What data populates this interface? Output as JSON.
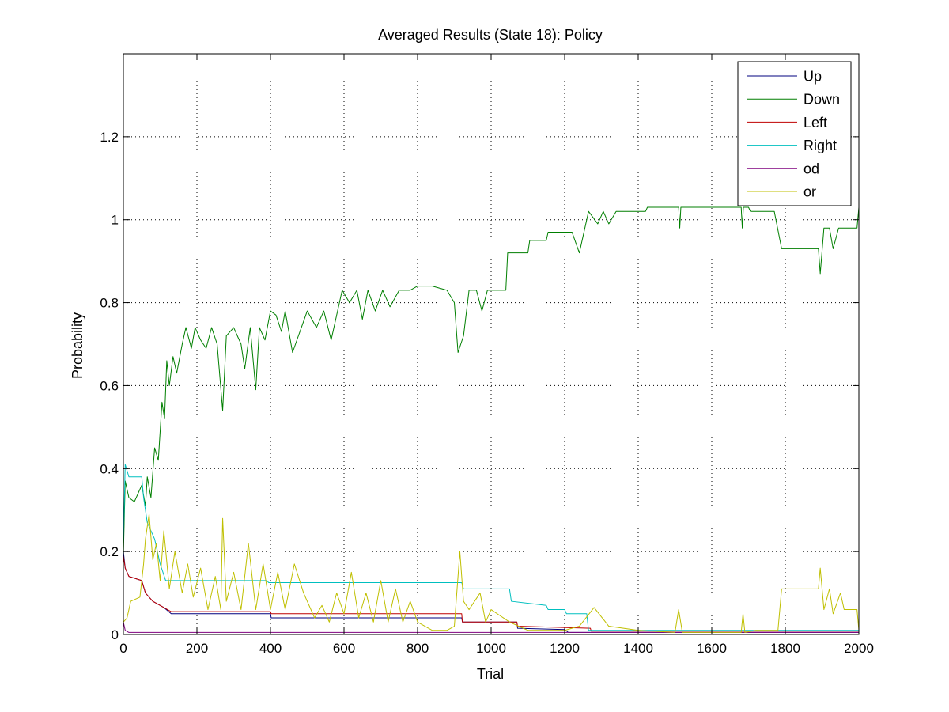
{
  "chart_data": {
    "type": "line",
    "title": "Averaged Results (State 18): Policy",
    "xlabel": "Trial",
    "ylabel": "Probability",
    "xlim": [
      0,
      2000
    ],
    "ylim": [
      0,
      1.4
    ],
    "xticks": [
      0,
      200,
      400,
      600,
      800,
      1000,
      1200,
      1400,
      1600,
      1800,
      2000
    ],
    "yticks": [
      0,
      0.2,
      0.4,
      0.6,
      0.8,
      1,
      1.2
    ],
    "ytick_labels": [
      "0",
      "0.2",
      "0.4",
      "0.6",
      "0.8",
      "1",
      "1.2"
    ],
    "grid": true,
    "legend_position": "top-right",
    "series": [
      {
        "name": "Up",
        "color": "#00007f",
        "points": [
          [
            0,
            0.2
          ],
          [
            5,
            0.16
          ],
          [
            15,
            0.14
          ],
          [
            50,
            0.13
          ],
          [
            60,
            0.1
          ],
          [
            80,
            0.08
          ],
          [
            110,
            0.065
          ],
          [
            130,
            0.05
          ],
          [
            400,
            0.05
          ],
          [
            402,
            0.04
          ],
          [
            920,
            0.04
          ],
          [
            922,
            0.03
          ],
          [
            1070,
            0.03
          ],
          [
            1072,
            0.015
          ],
          [
            1200,
            0.012
          ],
          [
            1210,
            0.005
          ],
          [
            2000,
            0.005
          ]
        ]
      },
      {
        "name": "Down",
        "color": "#007f00",
        "points": [
          [
            0,
            0.19
          ],
          [
            5,
            0.37
          ],
          [
            15,
            0.33
          ],
          [
            30,
            0.32
          ],
          [
            50,
            0.36
          ],
          [
            60,
            0.31
          ],
          [
            65,
            0.38
          ],
          [
            75,
            0.33
          ],
          [
            85,
            0.45
          ],
          [
            95,
            0.42
          ],
          [
            105,
            0.56
          ],
          [
            112,
            0.52
          ],
          [
            118,
            0.66
          ],
          [
            125,
            0.6
          ],
          [
            135,
            0.67
          ],
          [
            145,
            0.63
          ],
          [
            160,
            0.7
          ],
          [
            170,
            0.74
          ],
          [
            185,
            0.69
          ],
          [
            195,
            0.74
          ],
          [
            210,
            0.71
          ],
          [
            225,
            0.69
          ],
          [
            240,
            0.74
          ],
          [
            255,
            0.7
          ],
          [
            270,
            0.54
          ],
          [
            280,
            0.72
          ],
          [
            300,
            0.74
          ],
          [
            320,
            0.7
          ],
          [
            330,
            0.64
          ],
          [
            345,
            0.74
          ],
          [
            360,
            0.59
          ],
          [
            370,
            0.74
          ],
          [
            385,
            0.71
          ],
          [
            400,
            0.78
          ],
          [
            415,
            0.77
          ],
          [
            430,
            0.73
          ],
          [
            440,
            0.78
          ],
          [
            460,
            0.68
          ],
          [
            480,
            0.73
          ],
          [
            500,
            0.78
          ],
          [
            525,
            0.74
          ],
          [
            545,
            0.78
          ],
          [
            565,
            0.71
          ],
          [
            580,
            0.77
          ],
          [
            595,
            0.83
          ],
          [
            615,
            0.8
          ],
          [
            635,
            0.83
          ],
          [
            650,
            0.76
          ],
          [
            665,
            0.83
          ],
          [
            685,
            0.78
          ],
          [
            705,
            0.83
          ],
          [
            725,
            0.79
          ],
          [
            750,
            0.83
          ],
          [
            780,
            0.83
          ],
          [
            800,
            0.84
          ],
          [
            840,
            0.84
          ],
          [
            880,
            0.83
          ],
          [
            900,
            0.8
          ],
          [
            910,
            0.68
          ],
          [
            925,
            0.72
          ],
          [
            940,
            0.83
          ],
          [
            960,
            0.83
          ],
          [
            975,
            0.78
          ],
          [
            990,
            0.83
          ],
          [
            1040,
            0.83
          ],
          [
            1045,
            0.92
          ],
          [
            1100,
            0.92
          ],
          [
            1105,
            0.95
          ],
          [
            1150,
            0.95
          ],
          [
            1155,
            0.97
          ],
          [
            1220,
            0.97
          ],
          [
            1240,
            0.92
          ],
          [
            1265,
            1.02
          ],
          [
            1290,
            0.99
          ],
          [
            1305,
            1.02
          ],
          [
            1320,
            0.99
          ],
          [
            1340,
            1.02
          ],
          [
            1420,
            1.02
          ],
          [
            1425,
            1.03
          ],
          [
            1510,
            1.03
          ],
          [
            1513,
            0.98
          ],
          [
            1516,
            1.03
          ],
          [
            1680,
            1.03
          ],
          [
            1683,
            0.98
          ],
          [
            1686,
            1.03
          ],
          [
            1700,
            1.03
          ],
          [
            1705,
            1.02
          ],
          [
            1770,
            1.02
          ],
          [
            1790,
            0.93
          ],
          [
            1890,
            0.93
          ],
          [
            1895,
            0.87
          ],
          [
            1905,
            0.98
          ],
          [
            1920,
            0.98
          ],
          [
            1930,
            0.93
          ],
          [
            1945,
            0.98
          ],
          [
            1995,
            0.98
          ],
          [
            2000,
            1.03
          ]
        ]
      },
      {
        "name": "Left",
        "color": "#bf0000",
        "points": [
          [
            0,
            0.19
          ],
          [
            5,
            0.16
          ],
          [
            15,
            0.14
          ],
          [
            50,
            0.13
          ],
          [
            60,
            0.1
          ],
          [
            80,
            0.08
          ],
          [
            110,
            0.065
          ],
          [
            130,
            0.055
          ],
          [
            400,
            0.055
          ],
          [
            402,
            0.05
          ],
          [
            920,
            0.05
          ],
          [
            922,
            0.03
          ],
          [
            1070,
            0.03
          ],
          [
            1072,
            0.02
          ],
          [
            1270,
            0.015
          ],
          [
            1272,
            0.008
          ],
          [
            2000,
            0.008
          ]
        ]
      },
      {
        "name": "Right",
        "color": "#00bfbf",
        "points": [
          [
            0,
            0.22
          ],
          [
            5,
            0.41
          ],
          [
            15,
            0.38
          ],
          [
            50,
            0.38
          ],
          [
            55,
            0.33
          ],
          [
            65,
            0.27
          ],
          [
            85,
            0.23
          ],
          [
            100,
            0.17
          ],
          [
            115,
            0.13
          ],
          [
            390,
            0.13
          ],
          [
            395,
            0.125
          ],
          [
            920,
            0.125
          ],
          [
            925,
            0.11
          ],
          [
            1050,
            0.11
          ],
          [
            1055,
            0.08
          ],
          [
            1150,
            0.07
          ],
          [
            1155,
            0.06
          ],
          [
            1200,
            0.06
          ],
          [
            1205,
            0.05
          ],
          [
            1260,
            0.05
          ],
          [
            1265,
            0.01
          ],
          [
            2000,
            0.01
          ]
        ]
      },
      {
        "name": "od",
        "color": "#7f007f",
        "points": [
          [
            0,
            0.03
          ],
          [
            5,
            0.01
          ],
          [
            15,
            0.005
          ],
          [
            1210,
            0.005
          ],
          [
            2000,
            0.005
          ]
        ]
      },
      {
        "name": "or",
        "color": "#bfbf00",
        "points": [
          [
            0,
            0.03
          ],
          [
            10,
            0.04
          ],
          [
            20,
            0.08
          ],
          [
            45,
            0.09
          ],
          [
            55,
            0.17
          ],
          [
            60,
            0.23
          ],
          [
            70,
            0.29
          ],
          [
            80,
            0.18
          ],
          [
            90,
            0.22
          ],
          [
            100,
            0.13
          ],
          [
            110,
            0.25
          ],
          [
            125,
            0.11
          ],
          [
            140,
            0.2
          ],
          [
            160,
            0.1
          ],
          [
            175,
            0.17
          ],
          [
            190,
            0.09
          ],
          [
            210,
            0.16
          ],
          [
            230,
            0.06
          ],
          [
            250,
            0.14
          ],
          [
            265,
            0.06
          ],
          [
            270,
            0.28
          ],
          [
            280,
            0.08
          ],
          [
            300,
            0.15
          ],
          [
            320,
            0.06
          ],
          [
            340,
            0.22
          ],
          [
            360,
            0.06
          ],
          [
            380,
            0.17
          ],
          [
            400,
            0.06
          ],
          [
            420,
            0.15
          ],
          [
            440,
            0.06
          ],
          [
            465,
            0.17
          ],
          [
            490,
            0.1
          ],
          [
            520,
            0.04
          ],
          [
            540,
            0.07
          ],
          [
            560,
            0.03
          ],
          [
            580,
            0.1
          ],
          [
            600,
            0.05
          ],
          [
            620,
            0.15
          ],
          [
            640,
            0.04
          ],
          [
            660,
            0.1
          ],
          [
            680,
            0.03
          ],
          [
            700,
            0.13
          ],
          [
            720,
            0.03
          ],
          [
            740,
            0.11
          ],
          [
            760,
            0.03
          ],
          [
            780,
            0.08
          ],
          [
            800,
            0.03
          ],
          [
            840,
            0.01
          ],
          [
            880,
            0.01
          ],
          [
            900,
            0.02
          ],
          [
            915,
            0.2
          ],
          [
            925,
            0.08
          ],
          [
            940,
            0.06
          ],
          [
            970,
            0.1
          ],
          [
            985,
            0.03
          ],
          [
            1000,
            0.06
          ],
          [
            1050,
            0.03
          ],
          [
            1100,
            0.01
          ],
          [
            1200,
            0.01
          ],
          [
            1240,
            0.02
          ],
          [
            1280,
            0.065
          ],
          [
            1320,
            0.02
          ],
          [
            1400,
            0.01
          ],
          [
            1500,
            0.005
          ],
          [
            1510,
            0.06
          ],
          [
            1520,
            0.005
          ],
          [
            1600,
            0.005
          ],
          [
            1680,
            0.005
          ],
          [
            1685,
            0.05
          ],
          [
            1690,
            0.005
          ],
          [
            1720,
            0.01
          ],
          [
            1780,
            0.01
          ],
          [
            1790,
            0.11
          ],
          [
            1890,
            0.11
          ],
          [
            1895,
            0.16
          ],
          [
            1905,
            0.06
          ],
          [
            1920,
            0.11
          ],
          [
            1930,
            0.05
          ],
          [
            1950,
            0.1
          ],
          [
            1960,
            0.06
          ],
          [
            1995,
            0.06
          ],
          [
            2000,
            0.01
          ]
        ]
      }
    ]
  }
}
